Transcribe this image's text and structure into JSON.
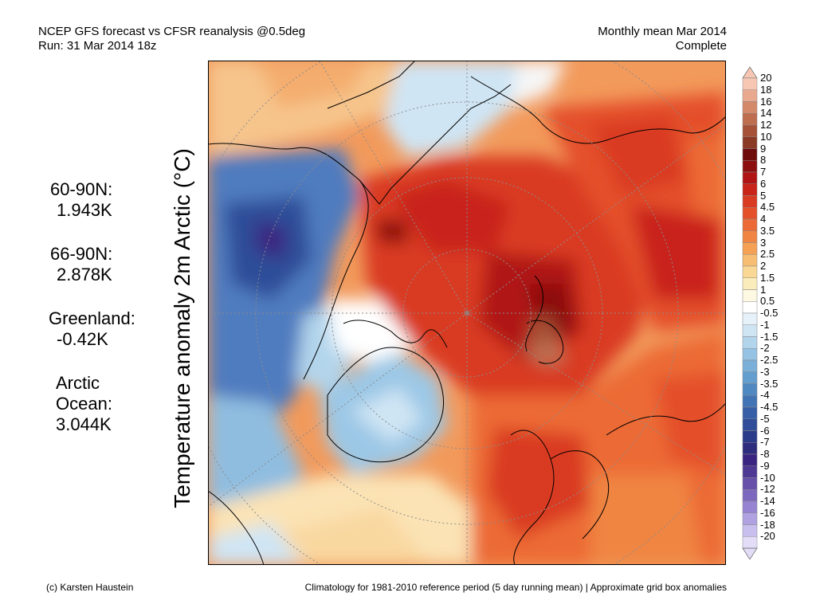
{
  "header": {
    "title_line1": "NCEP GFS forecast vs CFSR reanalysis @0.5deg",
    "title_line2": "Run: 31 Mar 2014 18z",
    "right_line1": "Monthly mean Mar 2014",
    "right_line2": "Complete"
  },
  "ylabel": "Temperature anomaly 2m Arctic (°C)",
  "stats": [
    {
      "label": "60-90N:",
      "value": "1.943K"
    },
    {
      "label": "66-90N:",
      "value": "2.878K"
    },
    {
      "label": "Greenland:",
      "value": "-0.42K"
    },
    {
      "label": "Arctic Ocean:",
      "value": "3.044K",
      "line1": "Arctic",
      "line2": "Ocean:"
    }
  ],
  "colorbar": {
    "labels": [
      "20",
      "18",
      "16",
      "14",
      "12",
      "10",
      "9",
      "8",
      "7",
      "6",
      "5",
      "4.5",
      "4",
      "3.5",
      "3",
      "2.5",
      "2",
      "1.5",
      "1",
      "0.5",
      "-0.5",
      "-1",
      "-1.5",
      "-2",
      "-2.5",
      "-3",
      "-3.5",
      "-4",
      "-4.5",
      "-5",
      "-6",
      "-7",
      "-8",
      "-9",
      "-10",
      "-12",
      "-14",
      "-16",
      "-18",
      "-20"
    ],
    "colors": [
      "#f7c7b4",
      "#e8a98e",
      "#d4896b",
      "#be6d4f",
      "#a65238",
      "#8a3a25",
      "#6e0b0b",
      "#8c0e0e",
      "#b01414",
      "#c9241a",
      "#d93a22",
      "#e4502a",
      "#ec6a35",
      "#f08543",
      "#f4a055",
      "#f7bd72",
      "#f9d895",
      "#fbecbb",
      "#fdf8e2",
      "#ffffff",
      "#e6f1fa",
      "#cfe5f4",
      "#b3d5ec",
      "#96c3e3",
      "#7bb0d9",
      "#649ece",
      "#5089c2",
      "#4174b5",
      "#365fa7",
      "#2f4d99",
      "#2b3c8a",
      "#2f2d7e",
      "#3a2682",
      "#4e3a94",
      "#6650aa",
      "#7d68bf",
      "#9683d1",
      "#b0a1e0",
      "#c9bfee",
      "#e3ddf8"
    ]
  },
  "footer": {
    "left": "(c) Karsten Haustein",
    "right": "Climatology for 1981-2010 reference period (5 day running mean) | Approximate grid box anomalies"
  }
}
